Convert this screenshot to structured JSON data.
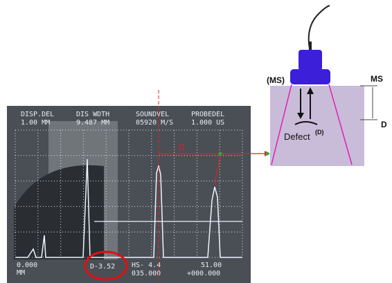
{
  "screen": {
    "header": [
      "DISP.DEL",
      "DIS WDTH",
      "SOUNDVEL",
      "PROBEDEL"
    ],
    "header_values": [
      "1.00 MM",
      "9.487 MM",
      "05920 M/S",
      "1.000 US"
    ],
    "footer": {
      "left": "0.000",
      "left_unit": "MM",
      "reading": "D-3.52",
      "middle_top": "HS- 4.4",
      "middle_bottom": "035.000",
      "right_top": "51.00",
      "right_bottom": "+000.000"
    }
  },
  "annotation": {
    "distance_label": "D"
  },
  "diagram": {
    "surface_left": "(MS)",
    "surface_right": "MS",
    "depth": "D",
    "defect": "Defect",
    "defect_tag": "(D)"
  }
}
